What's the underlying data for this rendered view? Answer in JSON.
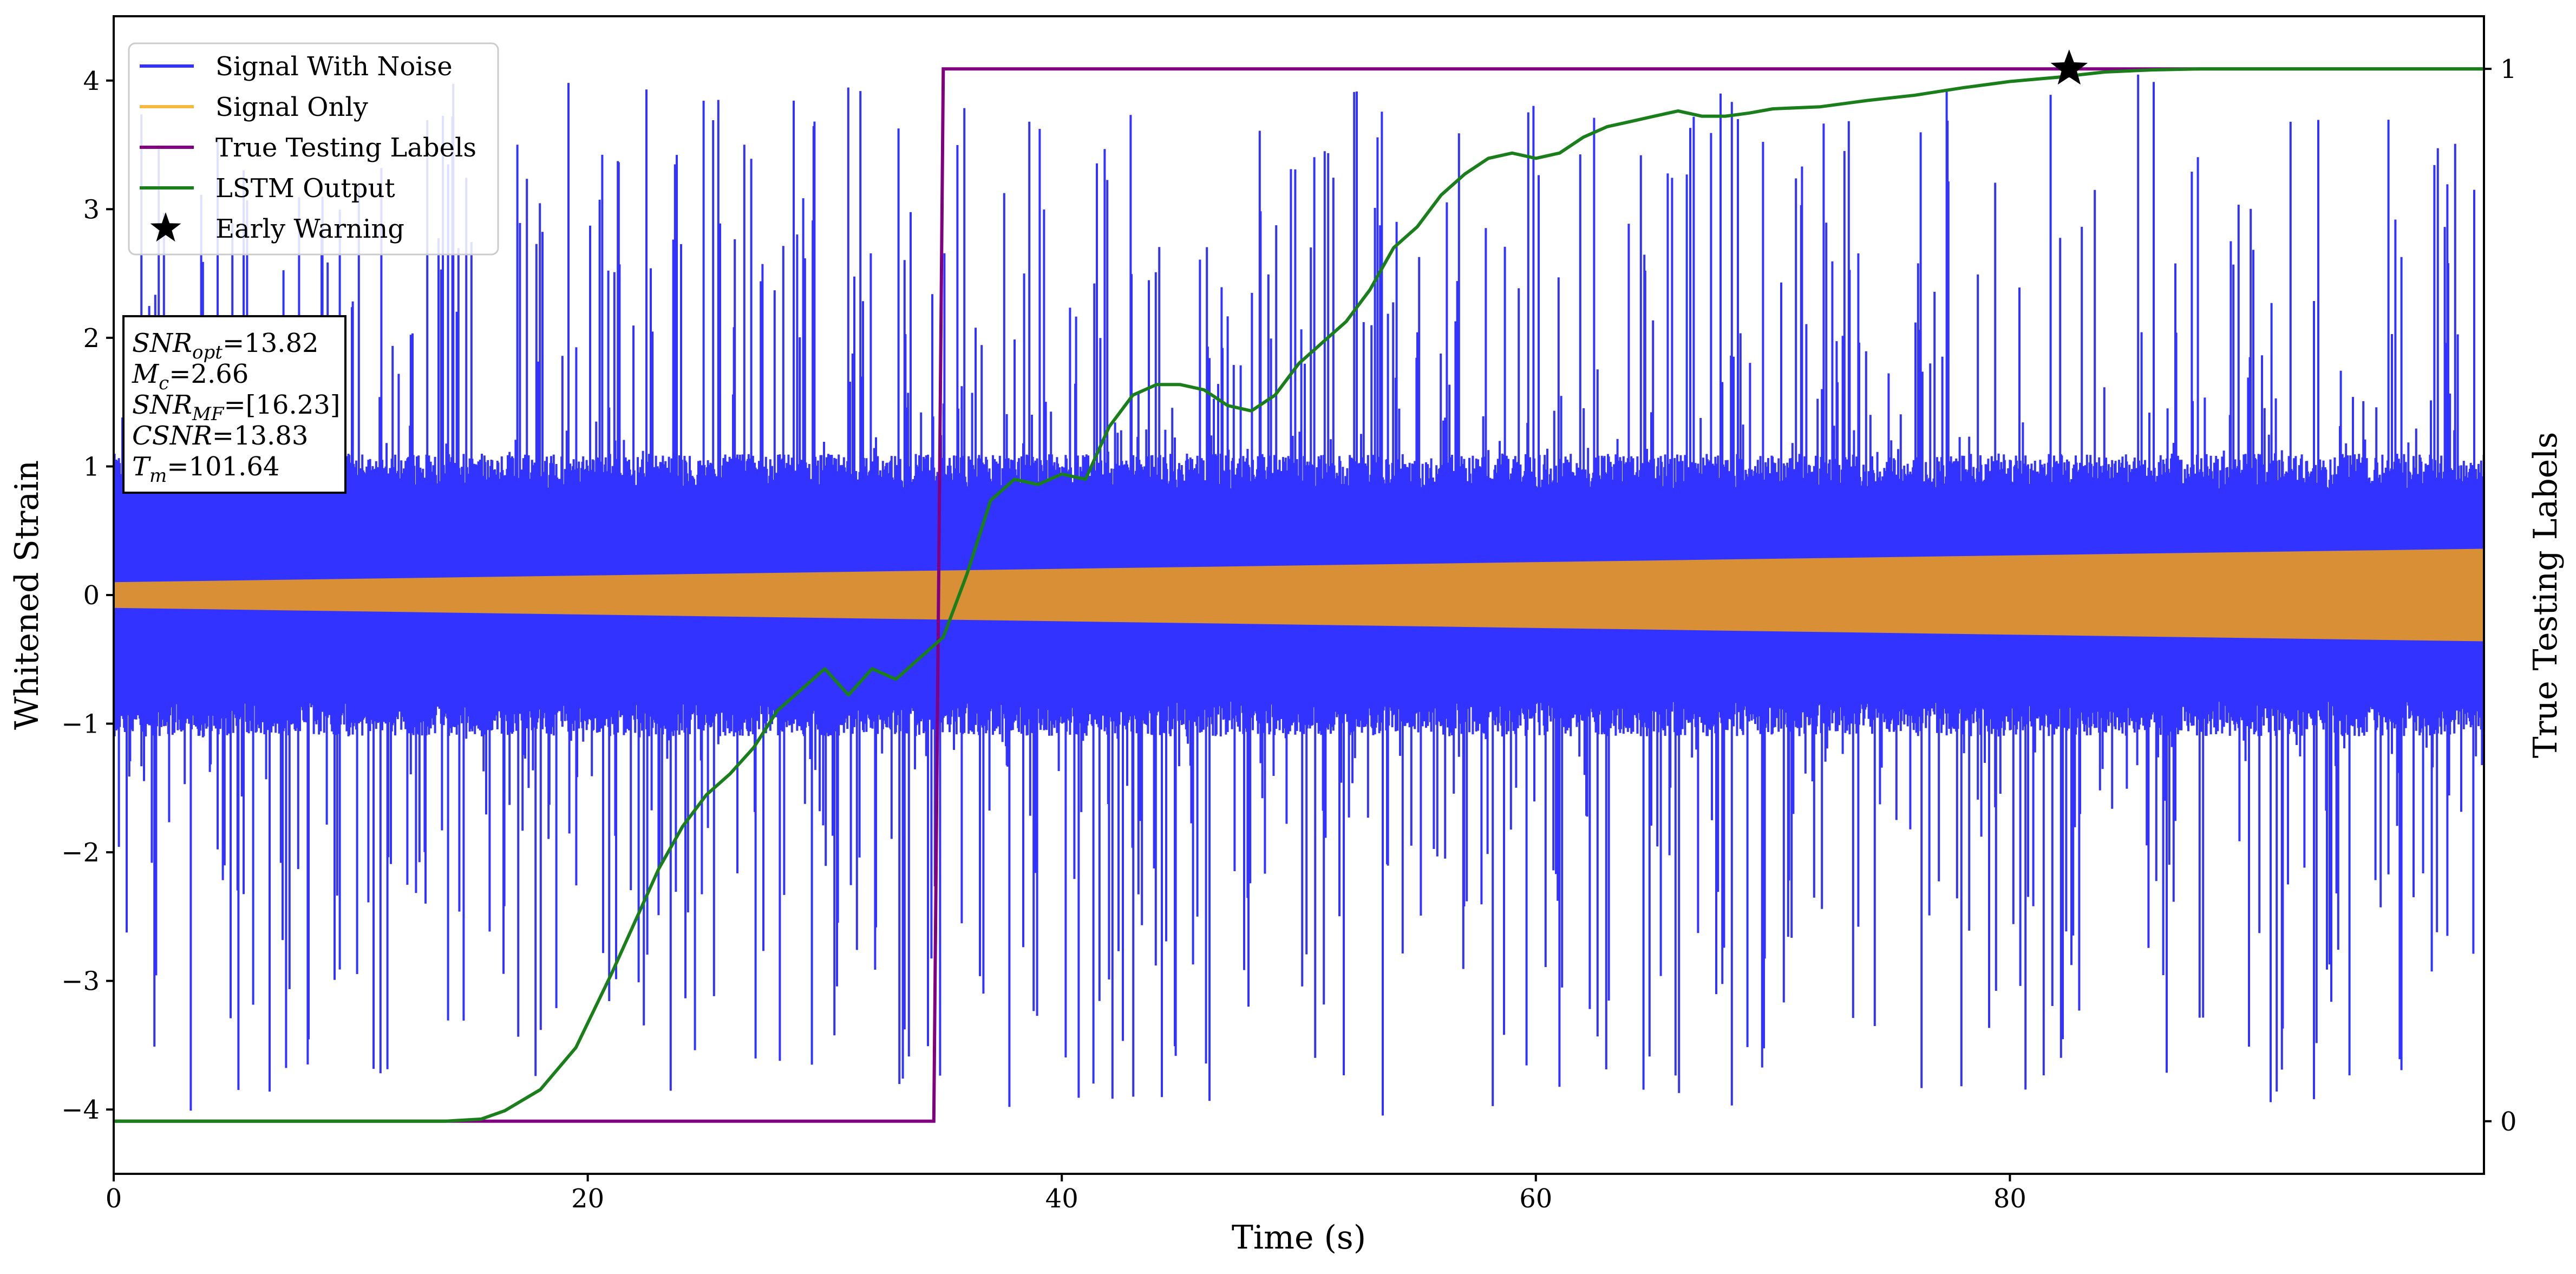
{
  "chart_data": {
    "type": "line",
    "xlabel": "Time (s)",
    "ylabel_left": "Whitened Strain",
    "ylabel_right": "True Testing Labels",
    "xlim": [
      0,
      100
    ],
    "ylim_left": [
      -4.5,
      4.5
    ],
    "ylim_right": [
      -0.05,
      1.05
    ],
    "x_ticks": [
      0,
      20,
      40,
      60,
      80
    ],
    "y_ticks_left": [
      -4,
      -3,
      -2,
      -1,
      0,
      1,
      2,
      3,
      4
    ],
    "y_ticks_left_labels": [
      "−4",
      "−3",
      "−2",
      "−1",
      "0",
      "1",
      "2",
      "3",
      "4"
    ],
    "y_ticks_right": [
      0,
      1
    ],
    "y_ticks_right_labels": [
      "0",
      "1"
    ],
    "grid": false,
    "legend_position": "top-left",
    "legend": [
      {
        "label": "Signal With Noise",
        "color": "#3333ff",
        "marker": "line"
      },
      {
        "label": "Signal Only",
        "color": "#f5b942",
        "marker": "line"
      },
      {
        "label": "True Testing Labels",
        "color": "#800080",
        "marker": "line"
      },
      {
        "label": "LSTM Output",
        "color": "#1a7f1a",
        "marker": "line"
      },
      {
        "label": "Early Warning",
        "color": "#000000",
        "marker": "star"
      }
    ],
    "annotation": {
      "lines": [
        {
          "sym": "SNR",
          "sub": "opt",
          "val": "=13.82"
        },
        {
          "sym": "M",
          "sub": "c",
          "val": "=2.66"
        },
        {
          "sym": "SNR",
          "sub": "MF",
          "val": "=[16.23]"
        },
        {
          "sym": "CSNR",
          "sub": "",
          "val": "=13.83"
        },
        {
          "sym": "T",
          "sub": "m",
          "val": "=101.64"
        }
      ]
    },
    "signal_only_envelope": {
      "x": [
        0,
        100
      ],
      "amplitude": [
        0.1,
        0.36
      ],
      "color": "#d98f35"
    },
    "noise": {
      "typical_amplitude": 1.1,
      "max_amplitude": 4.05,
      "color": "#3333ff"
    },
    "true_labels": {
      "x": [
        0,
        34.6,
        35.0,
        100
      ],
      "y": [
        0,
        0,
        1,
        1
      ],
      "color": "#800080"
    },
    "lstm_output": {
      "color": "#1a7f1a",
      "x": [
        0,
        14,
        15.5,
        16.5,
        18,
        19.5,
        21,
        22,
        23,
        24,
        25,
        26,
        27,
        28,
        29,
        30,
        31,
        32,
        33,
        34,
        35,
        36,
        37,
        38,
        39,
        40,
        41,
        42,
        43,
        44,
        45,
        46,
        47,
        48,
        49,
        50,
        51,
        52,
        53,
        54,
        55,
        56,
        57,
        58,
        59,
        60,
        61,
        62,
        63,
        64,
        65,
        66,
        67,
        68,
        69,
        70,
        72,
        74,
        76,
        78,
        80,
        82,
        84,
        86,
        88,
        90,
        95,
        100
      ],
      "y": [
        0,
        0,
        0.002,
        0.01,
        0.03,
        0.07,
        0.14,
        0.19,
        0.24,
        0.28,
        0.31,
        0.33,
        0.355,
        0.39,
        0.41,
        0.43,
        0.405,
        0.43,
        0.42,
        0.44,
        0.46,
        0.52,
        0.59,
        0.61,
        0.605,
        0.615,
        0.61,
        0.66,
        0.69,
        0.7,
        0.7,
        0.695,
        0.68,
        0.675,
        0.69,
        0.72,
        0.74,
        0.76,
        0.79,
        0.83,
        0.85,
        0.88,
        0.9,
        0.915,
        0.92,
        0.915,
        0.92,
        0.935,
        0.945,
        0.95,
        0.955,
        0.96,
        0.955,
        0.955,
        0.958,
        0.962,
        0.964,
        0.97,
        0.975,
        0.982,
        0.988,
        0.992,
        0.997,
        0.999,
        1.0,
        1.0,
        1.0,
        1.0
      ]
    },
    "early_warning": {
      "x": 82.5,
      "y_label": 1.0
    }
  }
}
